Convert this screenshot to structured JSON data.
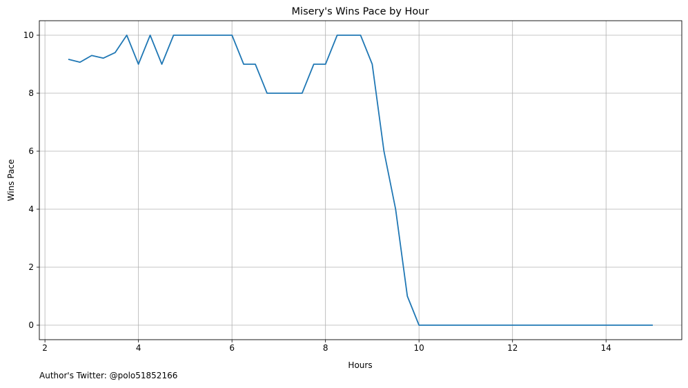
{
  "chart_data": {
    "type": "line",
    "title": "Misery's Wins Pace by Hour",
    "xlabel": "Hours",
    "ylabel": "Wins Pace",
    "xlim": [
      1.88,
      15.62
    ],
    "ylim": [
      -0.5,
      10.5
    ],
    "xticks": [
      2,
      4,
      6,
      8,
      10,
      12,
      14
    ],
    "yticks": [
      0,
      2,
      4,
      6,
      8,
      10
    ],
    "grid": true,
    "legend": "none",
    "line_color": "#1f77b4",
    "series": [
      {
        "x": [
          2.5,
          2.75,
          3.0,
          3.25,
          3.5,
          3.75,
          4.0,
          4.25,
          4.5,
          4.75,
          5.0,
          5.25,
          5.5,
          5.75,
          6.0,
          6.25,
          6.5,
          6.75,
          7.0,
          7.25,
          7.5,
          7.75,
          8.0,
          8.25,
          8.5,
          8.75,
          9.0,
          9.25,
          9.5,
          9.75,
          10.0,
          10.25,
          10.5,
          10.75,
          11.0,
          11.25,
          11.5,
          11.75,
          12.0,
          12.25,
          12.5,
          12.75,
          13.0,
          13.25,
          13.5,
          13.75,
          14.0,
          14.25,
          14.5,
          14.75,
          15.0
        ],
        "values": [
          9.17,
          9.07,
          9.3,
          9.21,
          9.4,
          10,
          9,
          10,
          9,
          10,
          10,
          10,
          10,
          10,
          10,
          9,
          9,
          8,
          8,
          8,
          8,
          9,
          9,
          10,
          10,
          10,
          9,
          6,
          4,
          1,
          0,
          0,
          0,
          0,
          0,
          0,
          0,
          0,
          0,
          0,
          0,
          0,
          0,
          0,
          0,
          0,
          0,
          0,
          0,
          0,
          0
        ]
      }
    ]
  },
  "credit": "Author's Twitter: @polo51852166"
}
